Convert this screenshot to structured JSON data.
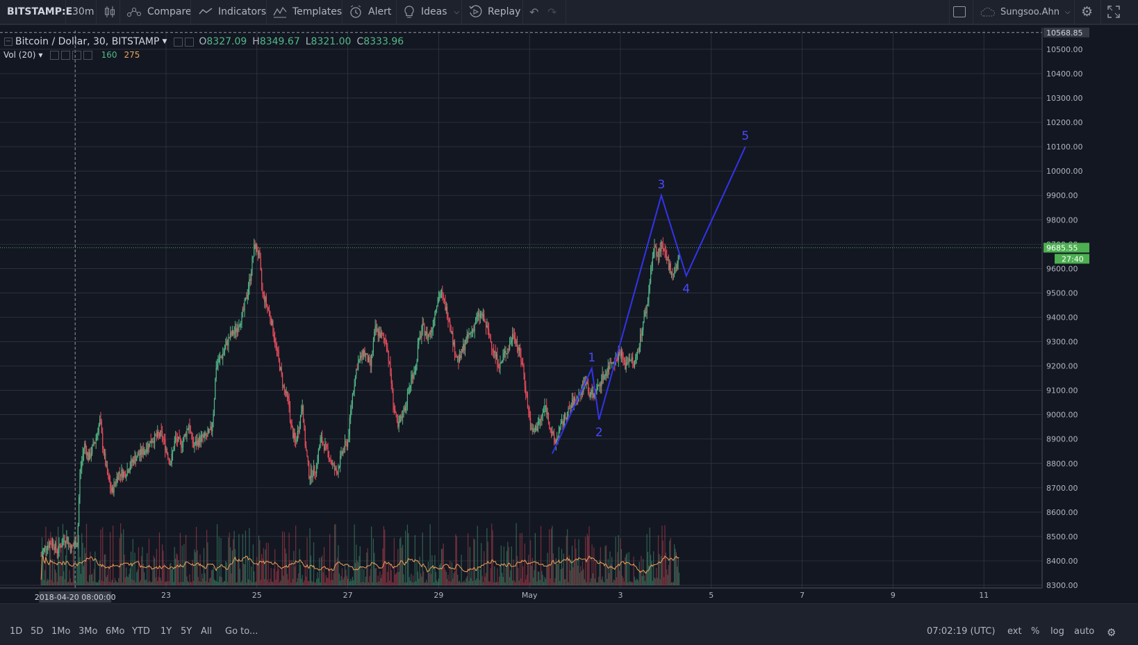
{
  "toolbar": {
    "symbol": "BITSTAMP:E",
    "interval": "30m",
    "compare": "Compare",
    "indicators": "Indicators",
    "templates": "Templates",
    "alert": "Alert",
    "ideas": "Ideas",
    "replay": "Replay",
    "user": "Sungsoo.Ahn",
    "icons": {
      "candles": "candlestick-icon",
      "compare": "compare-icon",
      "indicators": "indicators-icon",
      "templates": "templates-icon",
      "alert": "alert-clock-icon",
      "ideas": "lightbulb-icon",
      "replay": "replay-icon",
      "undo": "undo-icon",
      "redo": "redo-icon",
      "settings": "gear-icon",
      "fullscreen": "fullscreen-icon",
      "layout": "layout-square-icon",
      "cloud": "cloud-icon"
    }
  },
  "legend": {
    "title": "Bitcoin / Dollar, 30, BITSTAMP",
    "open_label": "O",
    "open": "8327.09",
    "high_label": "H",
    "high": "8349.67",
    "low_label": "L",
    "low": "8321.00",
    "close_label": "C",
    "close": "8333.96",
    "vol_label": "Vol (20)",
    "vol_value": "160",
    "vol_ma": "275"
  },
  "price_axis": {
    "crosshair_label": "10568.85",
    "last_price": "9685.55",
    "countdown": "27:40"
  },
  "time_axis": {
    "crosshair_label": "2018-04-20 08:00:00"
  },
  "bottom": {
    "ranges": [
      "1D",
      "5D",
      "1Mo",
      "3Mo",
      "6Mo",
      "YTD",
      "1Y",
      "5Y",
      "All"
    ],
    "goto": "Go to...",
    "clock": "07:02:19 (UTC)",
    "ext": "ext",
    "percent": "%",
    "log": "log",
    "auto": "auto"
  },
  "colors": {
    "background": "#131722",
    "up": "#53b987",
    "down": "#eb4d5c",
    "wave": "#3333ee",
    "wave_label": "#4a4aff",
    "volume_ma": "#f0a35a",
    "last_price": "#4caf50"
  },
  "chart_data": {
    "type": "candlestick",
    "title": "Bitcoin / Dollar, 30, BITSTAMP",
    "y_ticks": [
      8300,
      8400,
      8500,
      8600,
      8700,
      8800,
      8900,
      9000,
      9100,
      9200,
      9300,
      9400,
      9500,
      9600,
      9700,
      9800,
      9900,
      10000,
      10100,
      10200,
      10300,
      10400,
      10500
    ],
    "y_tick_labels": [
      "8300.00",
      "8400.00",
      "8500.00",
      "8600.00",
      "8700.00",
      "8800.00",
      "8900.00",
      "9000.00",
      "9100.00",
      "9200.00",
      "9300.00",
      "9400.00",
      "9500.00",
      "9600.00",
      "9700.00",
      "9800.00",
      "9900.00",
      "10000.00",
      "10100.00",
      "10200.00",
      "10300.00",
      "10400.00",
      "10500.00"
    ],
    "ylim": [
      8300,
      10580
    ],
    "x_tick_labels": [
      {
        "day": 23,
        "label": "23"
      },
      {
        "day": 25,
        "label": "25"
      },
      {
        "day": 27,
        "label": "27"
      },
      {
        "day": 29,
        "label": "29"
      },
      {
        "day": 31,
        "label": "May"
      },
      {
        "day": 33,
        "label": "3"
      },
      {
        "day": 35,
        "label": "5"
      },
      {
        "day": 37,
        "label": "7"
      },
      {
        "day": 39,
        "label": "9"
      },
      {
        "day": 41,
        "label": "11"
      }
    ],
    "xlim_days": [
      20.0,
      42.35
    ],
    "price_path": [
      [
        20.25,
        8420
      ],
      [
        20.35,
        8460
      ],
      [
        20.5,
        8480
      ],
      [
        20.6,
        8440
      ],
      [
        20.7,
        8470
      ],
      [
        20.8,
        8500
      ],
      [
        20.9,
        8450
      ],
      [
        21.05,
        8480
      ],
      [
        21.1,
        8750
      ],
      [
        21.2,
        8880
      ],
      [
        21.3,
        8820
      ],
      [
        21.45,
        8900
      ],
      [
        21.55,
        8980
      ],
      [
        21.6,
        8880
      ],
      [
        21.7,
        8760
      ],
      [
        21.8,
        8680
      ],
      [
        21.95,
        8760
      ],
      [
        22.1,
        8760
      ],
      [
        22.3,
        8820
      ],
      [
        22.5,
        8850
      ],
      [
        22.7,
        8900
      ],
      [
        22.9,
        8920
      ],
      [
        23.0,
        8860
      ],
      [
        23.1,
        8800
      ],
      [
        23.2,
        8900
      ],
      [
        23.35,
        8880
      ],
      [
        23.5,
        8960
      ],
      [
        23.6,
        8870
      ],
      [
        23.75,
        8900
      ],
      [
        23.9,
        8910
      ],
      [
        24.0,
        8940
      ],
      [
        24.05,
        9030
      ],
      [
        24.1,
        9200
      ],
      [
        24.25,
        9250
      ],
      [
        24.4,
        9320
      ],
      [
        24.55,
        9350
      ],
      [
        24.7,
        9420
      ],
      [
        24.85,
        9560
      ],
      [
        24.95,
        9700
      ],
      [
        25.05,
        9650
      ],
      [
        25.12,
        9500
      ],
      [
        25.2,
        9460
      ],
      [
        25.3,
        9400
      ],
      [
        25.4,
        9300
      ],
      [
        25.5,
        9200
      ],
      [
        25.6,
        9100
      ],
      [
        25.7,
        9050
      ],
      [
        25.75,
        8950
      ],
      [
        25.85,
        8880
      ],
      [
        25.95,
        8980
      ],
      [
        26.0,
        9050
      ],
      [
        26.05,
        8900
      ],
      [
        26.15,
        8750
      ],
      [
        26.3,
        8780
      ],
      [
        26.4,
        8900
      ],
      [
        26.55,
        8850
      ],
      [
        26.65,
        8800
      ],
      [
        26.75,
        8760
      ],
      [
        26.9,
        8860
      ],
      [
        27.0,
        8890
      ],
      [
        27.1,
        9080
      ],
      [
        27.2,
        9200
      ],
      [
        27.35,
        9260
      ],
      [
        27.5,
        9200
      ],
      [
        27.6,
        9350
      ],
      [
        27.75,
        9320
      ],
      [
        27.85,
        9300
      ],
      [
        27.95,
        9150
      ],
      [
        28.0,
        9050
      ],
      [
        28.1,
        8940
      ],
      [
        28.2,
        9000
      ],
      [
        28.3,
        9060
      ],
      [
        28.4,
        9150
      ],
      [
        28.5,
        9200
      ],
      [
        28.55,
        9290
      ],
      [
        28.65,
        9360
      ],
      [
        28.75,
        9320
      ],
      [
        28.85,
        9350
      ],
      [
        28.95,
        9460
      ],
      [
        29.05,
        9500
      ],
      [
        29.15,
        9440
      ],
      [
        29.25,
        9380
      ],
      [
        29.35,
        9260
      ],
      [
        29.45,
        9220
      ],
      [
        29.55,
        9280
      ],
      [
        29.65,
        9320
      ],
      [
        29.75,
        9350
      ],
      [
        29.85,
        9400
      ],
      [
        29.95,
        9410
      ],
      [
        30.05,
        9360
      ],
      [
        30.15,
        9300
      ],
      [
        30.25,
        9240
      ],
      [
        30.35,
        9200
      ],
      [
        30.45,
        9250
      ],
      [
        30.55,
        9280
      ],
      [
        30.65,
        9340
      ],
      [
        30.75,
        9270
      ],
      [
        30.85,
        9200
      ],
      [
        30.95,
        9050
      ],
      [
        31.05,
        8920
      ],
      [
        31.15,
        8950
      ],
      [
        31.25,
        8980
      ],
      [
        31.35,
        9040
      ],
      [
        31.45,
        8950
      ],
      [
        31.55,
        8880
      ],
      [
        31.65,
        8930
      ],
      [
        31.75,
        8980
      ],
      [
        31.85,
        9010
      ],
      [
        31.95,
        9050
      ],
      [
        32.05,
        9070
      ],
      [
        32.15,
        9100
      ],
      [
        32.25,
        9150
      ],
      [
        32.3,
        9090
      ],
      [
        32.4,
        9080
      ],
      [
        32.5,
        9110
      ],
      [
        32.6,
        9150
      ],
      [
        32.7,
        9180
      ],
      [
        32.8,
        9220
      ],
      [
        32.9,
        9230
      ],
      [
        33.0,
        9260
      ],
      [
        33.1,
        9200
      ],
      [
        33.2,
        9240
      ],
      [
        33.3,
        9200
      ],
      [
        33.4,
        9280
      ],
      [
        33.5,
        9380
      ],
      [
        33.6,
        9460
      ],
      [
        33.68,
        9620
      ],
      [
        33.75,
        9690
      ],
      [
        33.82,
        9640
      ],
      [
        33.9,
        9700
      ],
      [
        33.98,
        9650
      ],
      [
        34.05,
        9620
      ],
      [
        34.15,
        9580
      ],
      [
        34.22,
        9600
      ],
      [
        34.3,
        9660
      ]
    ],
    "volume_max": 600,
    "volume_axis_bottom_price": 8300,
    "wave_annotation": {
      "points": [
        {
          "x": 31.5,
          "y": 8840
        },
        {
          "x": 32.37,
          "y": 9190,
          "label": "1"
        },
        {
          "x": 32.53,
          "y": 8980,
          "label": "2"
        },
        {
          "x": 33.9,
          "y": 9900,
          "label": "3"
        },
        {
          "x": 34.45,
          "y": 9570,
          "label": "4"
        },
        {
          "x": 35.75,
          "y": 10100,
          "label": "5"
        }
      ]
    },
    "last_price": 9685.55,
    "crosshair": {
      "x_day": 21.0,
      "y_price": 10568.85
    }
  }
}
